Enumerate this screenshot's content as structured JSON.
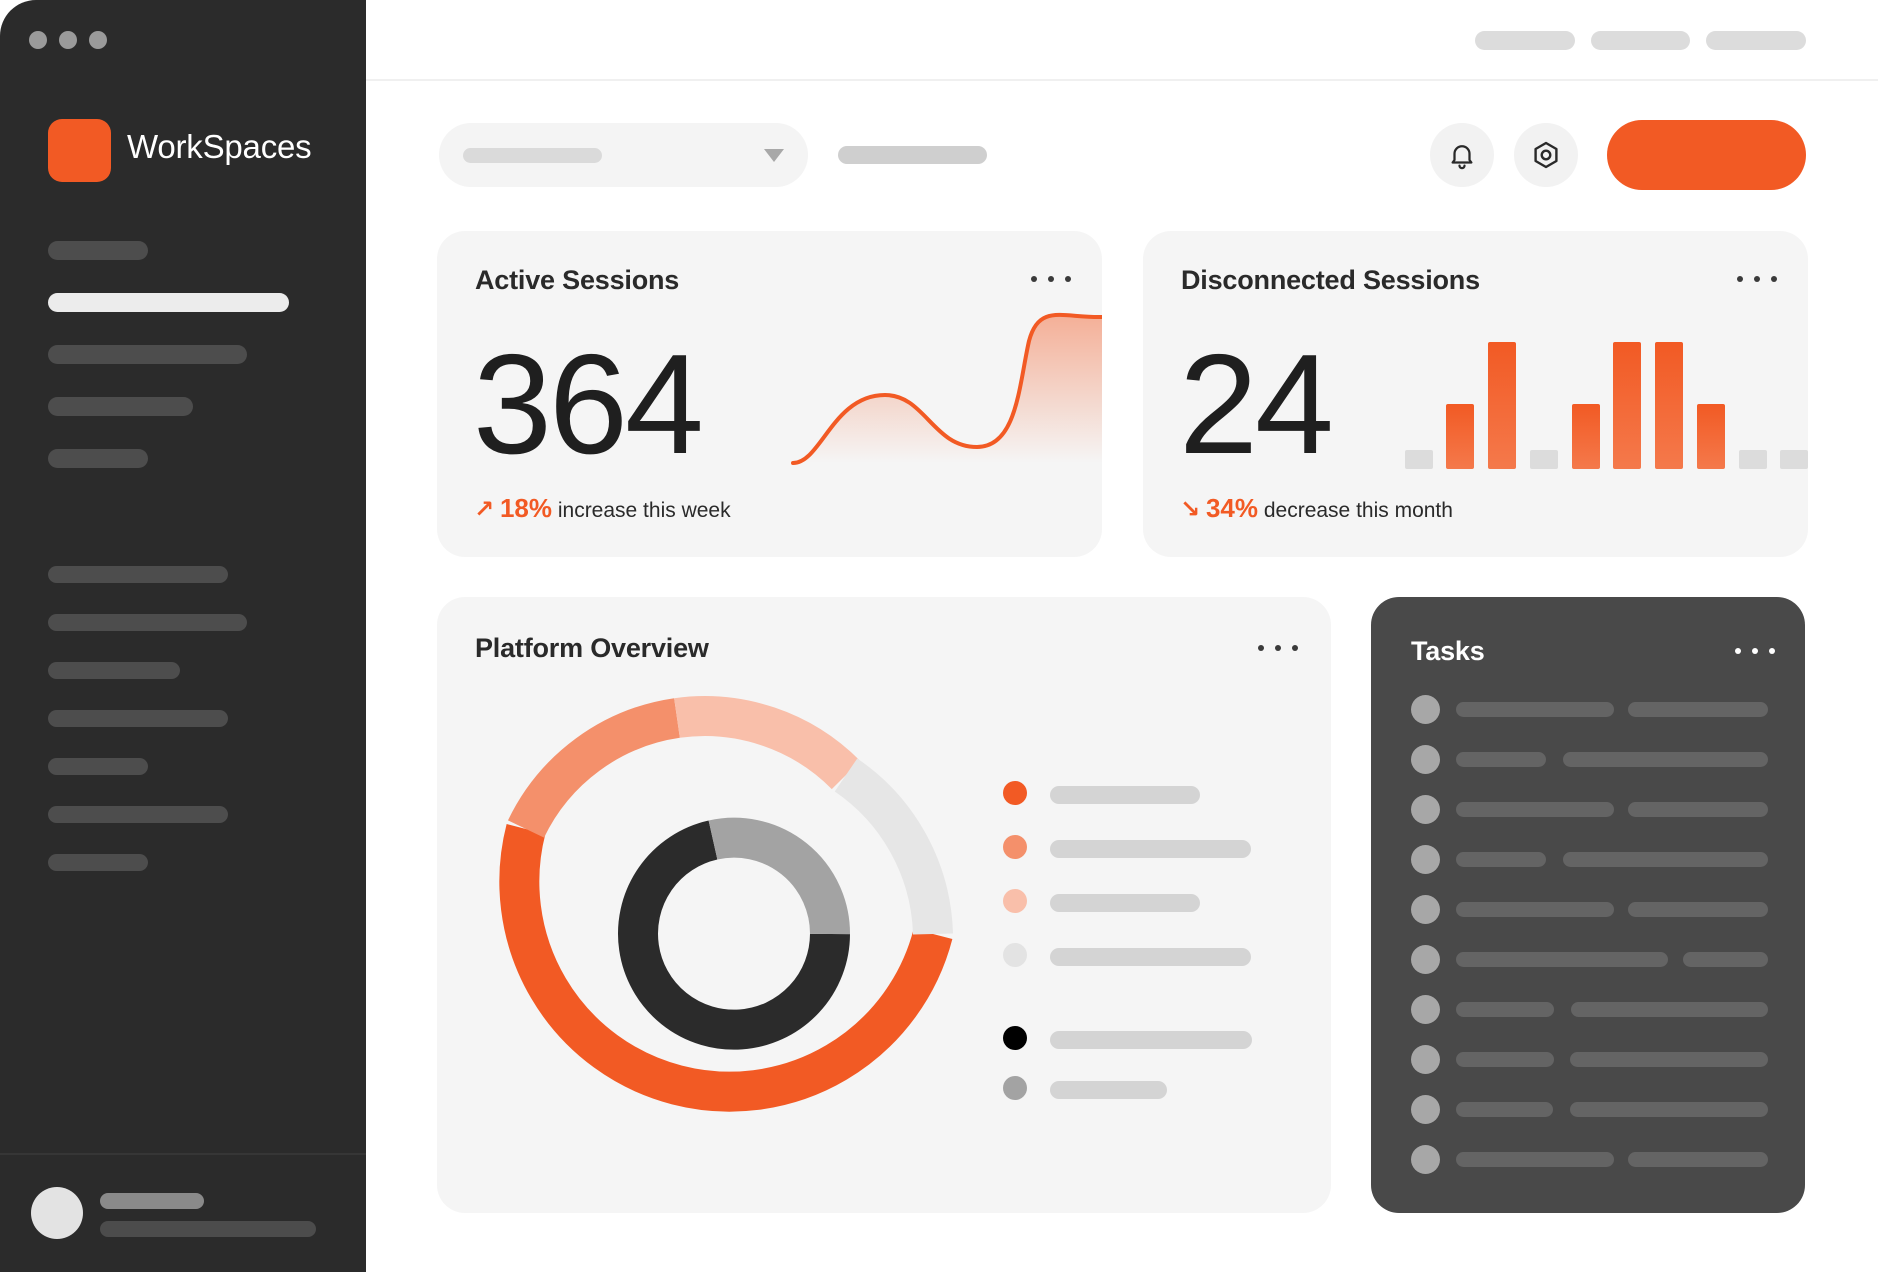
{
  "app": {
    "name": "WorkSpaces",
    "brand_color": "#f25a24"
  },
  "header": {
    "notifications_icon": "bell-icon",
    "settings_icon": "gear-icon"
  },
  "active_sessions": {
    "title": "Active Sessions",
    "value": "364",
    "trend_arrow": "↗",
    "trend_percent": "18%",
    "trend_text": "increase this week"
  },
  "disconnected_sessions": {
    "title": "Disconnected Sessions",
    "value": "24",
    "trend_arrow": "↘",
    "trend_percent": "34%",
    "trend_text": "decrease this month"
  },
  "platform_overview": {
    "title": "Platform Overview"
  },
  "tasks": {
    "title": "Tasks"
  },
  "colors": {
    "accent": "#f25a24",
    "accent_mid": "#f4906b",
    "accent_light": "#f9bfaa",
    "neutral_light": "#e6e6e6",
    "dark": "#2b2b2b",
    "gray": "#a3a3a3"
  }
}
